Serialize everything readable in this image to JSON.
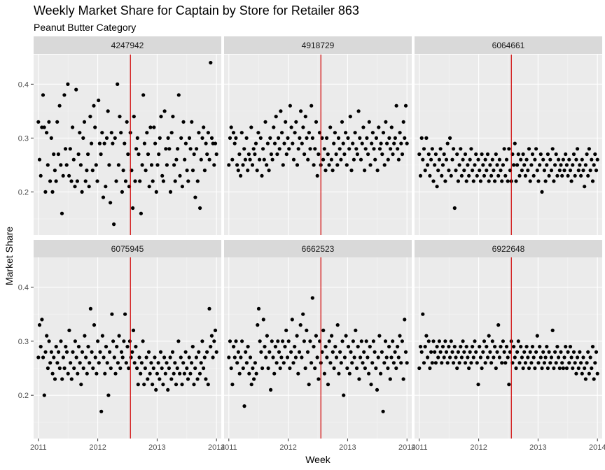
{
  "chart_data": {
    "type": "scatter",
    "title": "Weekly Market Share for Captain by Store for Retailer 863",
    "subtitle": "Peanut Butter Category",
    "xlabel": "Week",
    "ylabel": "Market Share",
    "xlim": [
      2010.92,
      2014.08
    ],
    "ylim": [
      0.12,
      0.455
    ],
    "x_ticks": [
      2011,
      2012,
      2013,
      2014
    ],
    "x_tick_labels": [
      "2011",
      "2012",
      "2013",
      "2014"
    ],
    "y_ticks": [
      0.2,
      0.3,
      0.4
    ],
    "y_tick_labels": [
      "0.2",
      "0.3",
      "0.4"
    ],
    "facet_layout": {
      "rows": 2,
      "cols": 3
    },
    "reference_line": {
      "x": 2012.55,
      "color": "#d00000"
    },
    "point_color": "#000000",
    "grid": true,
    "facets": [
      {
        "label": "4247942",
        "y": [
          0.33,
          0.26,
          0.23,
          0.32,
          0.38,
          0.32,
          0.2,
          0.31,
          0.25,
          0.33,
          0.22,
          0.3,
          0.2,
          0.27,
          0.24,
          0.22,
          0.33,
          0.27,
          0.36,
          0.25,
          0.16,
          0.23,
          0.38,
          0.28,
          0.25,
          0.4,
          0.23,
          0.28,
          0.22,
          0.32,
          0.26,
          0.21,
          0.39,
          0.22,
          0.27,
          0.31,
          0.25,
          0.2,
          0.3,
          0.33,
          0.22,
          0.24,
          0.27,
          0.21,
          0.34,
          0.29,
          0.24,
          0.36,
          0.32,
          0.25,
          0.22,
          0.37,
          0.29,
          0.27,
          0.31,
          0.19,
          0.29,
          0.21,
          0.3,
          0.35,
          0.25,
          0.18,
          0.31,
          0.29,
          0.14,
          0.3,
          0.22,
          0.4,
          0.25,
          0.34,
          0.31,
          0.2,
          0.24,
          0.29,
          0.22,
          0.33,
          0.27,
          0.21,
          0.31,
          0.24,
          0.17,
          0.34,
          0.22,
          0.28,
          0.3,
          0.27,
          0.22,
          0.16,
          0.25,
          0.38,
          0.29,
          0.24,
          0.31,
          0.27,
          0.21,
          0.32,
          0.25,
          0.22,
          0.32,
          0.29,
          0.2,
          0.25,
          0.27,
          0.3,
          0.34,
          0.23,
          0.22,
          0.35,
          0.28,
          0.25,
          0.3,
          0.28,
          0.2,
          0.31,
          0.34,
          0.25,
          0.22,
          0.26,
          0.28,
          0.38,
          0.23,
          0.3,
          0.21,
          0.33,
          0.26,
          0.29,
          0.24,
          0.22,
          0.3,
          0.28,
          0.33,
          0.24,
          0.27,
          0.19,
          0.28,
          0.22,
          0.31,
          0.17,
          0.26,
          0.3,
          0.32,
          0.24,
          0.29,
          0.27,
          0.31,
          0.26,
          0.44,
          0.3,
          0.29,
          0.25,
          0.29,
          0.27
        ]
      },
      {
        "label": "4918729",
        "y": [
          0.25,
          0.3,
          0.32,
          0.26,
          0.31,
          0.29,
          0.3,
          0.25,
          0.24,
          0.27,
          0.23,
          0.31,
          0.25,
          0.28,
          0.26,
          0.3,
          0.24,
          0.27,
          0.26,
          0.32,
          0.25,
          0.28,
          0.27,
          0.29,
          0.24,
          0.31,
          0.26,
          0.3,
          0.23,
          0.28,
          0.26,
          0.33,
          0.25,
          0.29,
          0.24,
          0.3,
          0.27,
          0.26,
          0.32,
          0.29,
          0.34,
          0.27,
          0.3,
          0.28,
          0.35,
          0.31,
          0.25,
          0.29,
          0.33,
          0.27,
          0.3,
          0.28,
          0.36,
          0.32,
          0.29,
          0.26,
          0.31,
          0.33,
          0.25,
          0.28,
          0.3,
          0.35,
          0.29,
          0.32,
          0.27,
          0.34,
          0.3,
          0.26,
          0.31,
          0.28,
          0.36,
          0.3,
          0.25,
          0.28,
          0.33,
          0.23,
          0.27,
          0.31,
          0.25,
          0.3,
          0.26,
          0.28,
          0.24,
          0.3,
          0.27,
          0.25,
          0.32,
          0.26,
          0.24,
          0.29,
          0.31,
          0.27,
          0.25,
          0.3,
          0.28,
          0.26,
          0.33,
          0.29,
          0.27,
          0.31,
          0.25,
          0.3,
          0.28,
          0.34,
          0.24,
          0.29,
          0.26,
          0.31,
          0.28,
          0.27,
          0.35,
          0.3,
          0.26,
          0.29,
          0.32,
          0.24,
          0.28,
          0.3,
          0.27,
          0.33,
          0.25,
          0.29,
          0.31,
          0.28,
          0.26,
          0.3,
          0.24,
          0.32,
          0.28,
          0.29,
          0.27,
          0.31,
          0.25,
          0.33,
          0.29,
          0.26,
          0.3,
          0.28,
          0.32,
          0.27,
          0.29,
          0.3,
          0.36,
          0.28,
          0.26,
          0.31,
          0.29,
          0.27,
          0.33,
          0.3,
          0.36,
          0.29
        ]
      },
      {
        "label": "6064661",
        "y": [
          0.27,
          0.23,
          0.3,
          0.26,
          0.28,
          0.24,
          0.3,
          0.25,
          0.27,
          0.23,
          0.26,
          0.28,
          0.22,
          0.25,
          0.27,
          0.21,
          0.24,
          0.26,
          0.28,
          0.23,
          0.25,
          0.27,
          0.22,
          0.26,
          0.29,
          0.24,
          0.3,
          0.23,
          0.26,
          0.28,
          0.17,
          0.24,
          0.27,
          0.22,
          0.25,
          0.28,
          0.23,
          0.26,
          0.24,
          0.27,
          0.22,
          0.25,
          0.23,
          0.26,
          0.28,
          0.24,
          0.22,
          0.25,
          0.27,
          0.23,
          0.26,
          0.24,
          0.22,
          0.27,
          0.25,
          0.23,
          0.26,
          0.24,
          0.27,
          0.22,
          0.25,
          0.23,
          0.26,
          0.24,
          0.22,
          0.27,
          0.25,
          0.23,
          0.26,
          0.24,
          0.22,
          0.25,
          0.28,
          0.23,
          0.26,
          0.22,
          0.28,
          0.24,
          0.22,
          0.27,
          0.25,
          0.29,
          0.22,
          0.25,
          0.27,
          0.23,
          0.26,
          0.24,
          0.27,
          0.25,
          0.23,
          0.26,
          0.24,
          0.28,
          0.22,
          0.25,
          0.27,
          0.23,
          0.26,
          0.28,
          0.24,
          0.22,
          0.25,
          0.27,
          0.2,
          0.26,
          0.24,
          0.22,
          0.25,
          0.27,
          0.23,
          0.26,
          0.24,
          0.28,
          0.22,
          0.25,
          0.27,
          0.23,
          0.26,
          0.24,
          0.25,
          0.23,
          0.26,
          0.24,
          0.27,
          0.25,
          0.23,
          0.26,
          0.24,
          0.22,
          0.25,
          0.27,
          0.23,
          0.26,
          0.28,
          0.24,
          0.25,
          0.23,
          0.26,
          0.24,
          0.21,
          0.25,
          0.27,
          0.23,
          0.28,
          0.24,
          0.26,
          0.22,
          0.25,
          0.27,
          0.24,
          0.26
        ]
      },
      {
        "label": "6075945",
        "y": [
          0.27,
          0.33,
          0.29,
          0.34,
          0.27,
          0.2,
          0.28,
          0.31,
          0.25,
          0.3,
          0.26,
          0.28,
          0.24,
          0.27,
          0.23,
          0.29,
          0.26,
          0.28,
          0.25,
          0.3,
          0.23,
          0.27,
          0.25,
          0.29,
          0.28,
          0.24,
          0.32,
          0.26,
          0.23,
          0.28,
          0.25,
          0.3,
          0.27,
          0.24,
          0.29,
          0.26,
          0.22,
          0.28,
          0.25,
          0.31,
          0.27,
          0.24,
          0.29,
          0.26,
          0.36,
          0.28,
          0.25,
          0.33,
          0.27,
          0.24,
          0.3,
          0.26,
          0.28,
          0.17,
          0.31,
          0.27,
          0.24,
          0.29,
          0.26,
          0.2,
          0.28,
          0.25,
          0.35,
          0.3,
          0.27,
          0.24,
          0.29,
          0.26,
          0.31,
          0.25,
          0.28,
          0.27,
          0.3,
          0.35,
          0.26,
          0.29,
          0.25,
          0.3,
          0.27,
          0.28,
          0.32,
          0.26,
          0.29,
          0.25,
          0.22,
          0.27,
          0.24,
          0.26,
          0.3,
          0.22,
          0.25,
          0.27,
          0.23,
          0.28,
          0.24,
          0.26,
          0.22,
          0.25,
          0.27,
          0.21,
          0.24,
          0.26,
          0.23,
          0.28,
          0.25,
          0.22,
          0.27,
          0.24,
          0.26,
          0.21,
          0.25,
          0.27,
          0.23,
          0.28,
          0.24,
          0.26,
          0.22,
          0.25,
          0.3,
          0.24,
          0.27,
          0.22,
          0.26,
          0.24,
          0.28,
          0.25,
          0.23,
          0.27,
          0.24,
          0.26,
          0.29,
          0.22,
          0.25,
          0.27,
          0.23,
          0.28,
          0.24,
          0.26,
          0.3,
          0.25,
          0.27,
          0.23,
          0.28,
          0.22,
          0.36,
          0.29,
          0.31,
          0.27,
          0.3,
          0.32,
          0.28
        ]
      },
      {
        "label": "6662523",
        "y": [
          0.27,
          0.3,
          0.25,
          0.22,
          0.29,
          0.27,
          0.3,
          0.26,
          0.28,
          0.24,
          0.27,
          0.3,
          0.25,
          0.18,
          0.28,
          0.26,
          0.29,
          0.24,
          0.27,
          0.22,
          0.25,
          0.23,
          0.26,
          0.24,
          0.33,
          0.36,
          0.3,
          0.28,
          0.25,
          0.34,
          0.29,
          0.27,
          0.31,
          0.25,
          0.28,
          0.21,
          0.3,
          0.27,
          0.24,
          0.29,
          0.26,
          0.3,
          0.28,
          0.25,
          0.27,
          0.3,
          0.26,
          0.29,
          0.32,
          0.27,
          0.3,
          0.25,
          0.28,
          0.34,
          0.26,
          0.29,
          0.27,
          0.31,
          0.24,
          0.28,
          0.33,
          0.27,
          0.35,
          0.3,
          0.25,
          0.32,
          0.28,
          0.22,
          0.3,
          0.26,
          0.38,
          0.29,
          0.25,
          0.31,
          0.27,
          0.23,
          0.3,
          0.26,
          0.28,
          0.32,
          0.24,
          0.29,
          0.27,
          0.22,
          0.3,
          0.26,
          0.31,
          0.28,
          0.25,
          0.29,
          0.27,
          0.33,
          0.24,
          0.28,
          0.26,
          0.3,
          0.2,
          0.27,
          0.31,
          0.25,
          0.29,
          0.24,
          0.28,
          0.26,
          0.3,
          0.27,
          0.32,
          0.25,
          0.29,
          0.23,
          0.27,
          0.3,
          0.26,
          0.28,
          0.25,
          0.3,
          0.27,
          0.24,
          0.29,
          0.22,
          0.26,
          0.3,
          0.28,
          0.25,
          0.21,
          0.27,
          0.31,
          0.24,
          0.28,
          0.17,
          0.26,
          0.3,
          0.27,
          0.25,
          0.29,
          0.23,
          0.27,
          0.3,
          0.26,
          0.28,
          0.25,
          0.29,
          0.27,
          0.31,
          0.26,
          0.3,
          0.23,
          0.34,
          0.28,
          0.26
        ]
      },
      {
        "label": "6922648",
        "y": [
          0.25,
          0.29,
          0.28,
          0.35,
          0.26,
          0.29,
          0.31,
          0.27,
          0.3,
          0.25,
          0.28,
          0.26,
          0.3,
          0.28,
          0.26,
          0.29,
          0.27,
          0.3,
          0.28,
          0.26,
          0.29,
          0.27,
          0.3,
          0.28,
          0.26,
          0.29,
          0.27,
          0.3,
          0.28,
          0.26,
          0.29,
          0.27,
          0.25,
          0.28,
          0.26,
          0.29,
          0.27,
          0.3,
          0.28,
          0.26,
          0.29,
          0.27,
          0.25,
          0.28,
          0.26,
          0.29,
          0.27,
          0.3,
          0.28,
          0.26,
          0.22,
          0.29,
          0.27,
          0.25,
          0.28,
          0.3,
          0.26,
          0.29,
          0.27,
          0.31,
          0.28,
          0.26,
          0.3,
          0.27,
          0.29,
          0.25,
          0.28,
          0.33,
          0.27,
          0.29,
          0.26,
          0.3,
          0.28,
          0.26,
          0.29,
          0.27,
          0.22,
          0.28,
          0.3,
          0.26,
          0.29,
          0.27,
          0.25,
          0.28,
          0.3,
          0.26,
          0.29,
          0.27,
          0.25,
          0.28,
          0.26,
          0.29,
          0.27,
          0.25,
          0.28,
          0.26,
          0.29,
          0.27,
          0.25,
          0.28,
          0.31,
          0.26,
          0.29,
          0.27,
          0.25,
          0.28,
          0.26,
          0.27,
          0.29,
          0.25,
          0.28,
          0.26,
          0.27,
          0.32,
          0.25,
          0.28,
          0.26,
          0.29,
          0.27,
          0.25,
          0.28,
          0.26,
          0.25,
          0.27,
          0.29,
          0.25,
          0.28,
          0.26,
          0.29,
          0.27,
          0.25,
          0.28,
          0.26,
          0.24,
          0.27,
          0.25,
          0.28,
          0.26,
          0.24,
          0.27,
          0.25,
          0.23,
          0.26,
          0.28,
          0.24,
          0.27,
          0.25,
          0.29,
          0.23,
          0.26,
          0.28,
          0.24
        ]
      }
    ]
  }
}
